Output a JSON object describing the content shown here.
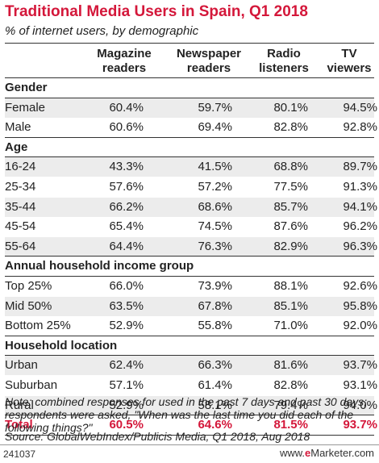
{
  "title": "Traditional Media Users in Spain, Q1 2018",
  "subtitle": "% of internet users, by demographic",
  "columns": [
    "Magazine\nreaders",
    "Newspaper\nreaders",
    "Radio\nlisteners",
    "TV\nviewers"
  ],
  "chart_data": {
    "type": "table",
    "title": "Traditional Media Users in Spain, Q1 2018",
    "subtitle": "% of internet users, by demographic",
    "columns": [
      "Magazine readers",
      "Newspaper readers",
      "Radio listeners",
      "TV viewers"
    ],
    "sections": [
      {
        "name": "Gender",
        "rows": [
          {
            "label": "Female",
            "values": [
              "60.4%",
              "59.7%",
              "80.1%",
              "94.5%"
            ]
          },
          {
            "label": "Male",
            "values": [
              "60.6%",
              "69.4%",
              "82.8%",
              "92.8%"
            ]
          }
        ]
      },
      {
        "name": "Age",
        "rows": [
          {
            "label": "16-24",
            "values": [
              "43.3%",
              "41.5%",
              "68.8%",
              "89.7%"
            ]
          },
          {
            "label": "25-34",
            "values": [
              "57.6%",
              "57.2%",
              "77.5%",
              "91.3%"
            ]
          },
          {
            "label": "35-44",
            "values": [
              "66.2%",
              "68.6%",
              "85.7%",
              "94.1%"
            ]
          },
          {
            "label": "45-54",
            "values": [
              "65.4%",
              "74.5%",
              "87.6%",
              "96.2%"
            ]
          },
          {
            "label": "55-64",
            "values": [
              "64.4%",
              "76.3%",
              "82.9%",
              "96.3%"
            ]
          }
        ]
      },
      {
        "name": "Annual household income group",
        "rows": [
          {
            "label": "Top 25%",
            "values": [
              "66.0%",
              "73.9%",
              "88.1%",
              "92.6%"
            ]
          },
          {
            "label": "Mid 50%",
            "values": [
              "63.5%",
              "67.8%",
              "85.1%",
              "95.8%"
            ]
          },
          {
            "label": "Bottom 25%",
            "values": [
              "52.9%",
              "55.8%",
              "71.0%",
              "92.0%"
            ]
          }
        ]
      },
      {
        "name": "Household location",
        "rows": [
          {
            "label": "Urban",
            "values": [
              "62.4%",
              "66.3%",
              "81.6%",
              "93.7%"
            ]
          },
          {
            "label": "Suburban",
            "values": [
              "57.1%",
              "61.4%",
              "82.8%",
              "93.1%"
            ]
          },
          {
            "label": "Rural",
            "values": [
              "52.9%",
              "58.1%",
              "79.4%",
              "94.0%"
            ]
          }
        ]
      }
    ],
    "total": {
      "label": "Total",
      "values": [
        "60.5%",
        "64.6%",
        "81.5%",
        "93.7%"
      ]
    }
  },
  "note": "Note: combined responses for used in the past 7 days and past 30 days; respondents were asked, \"When was the last time you did each of the following things?\"",
  "source": "Source: GlobalWebIndex/Publicis Media, Q1 2018, Aug 2018",
  "footer": {
    "id": "241037",
    "brand_prefix": "www.",
    "brand_e": "e",
    "brand_name": "Marketer",
    "brand_suffix": ".com"
  },
  "colors": {
    "accent": "#d4173a",
    "stripe": "#ececec"
  }
}
